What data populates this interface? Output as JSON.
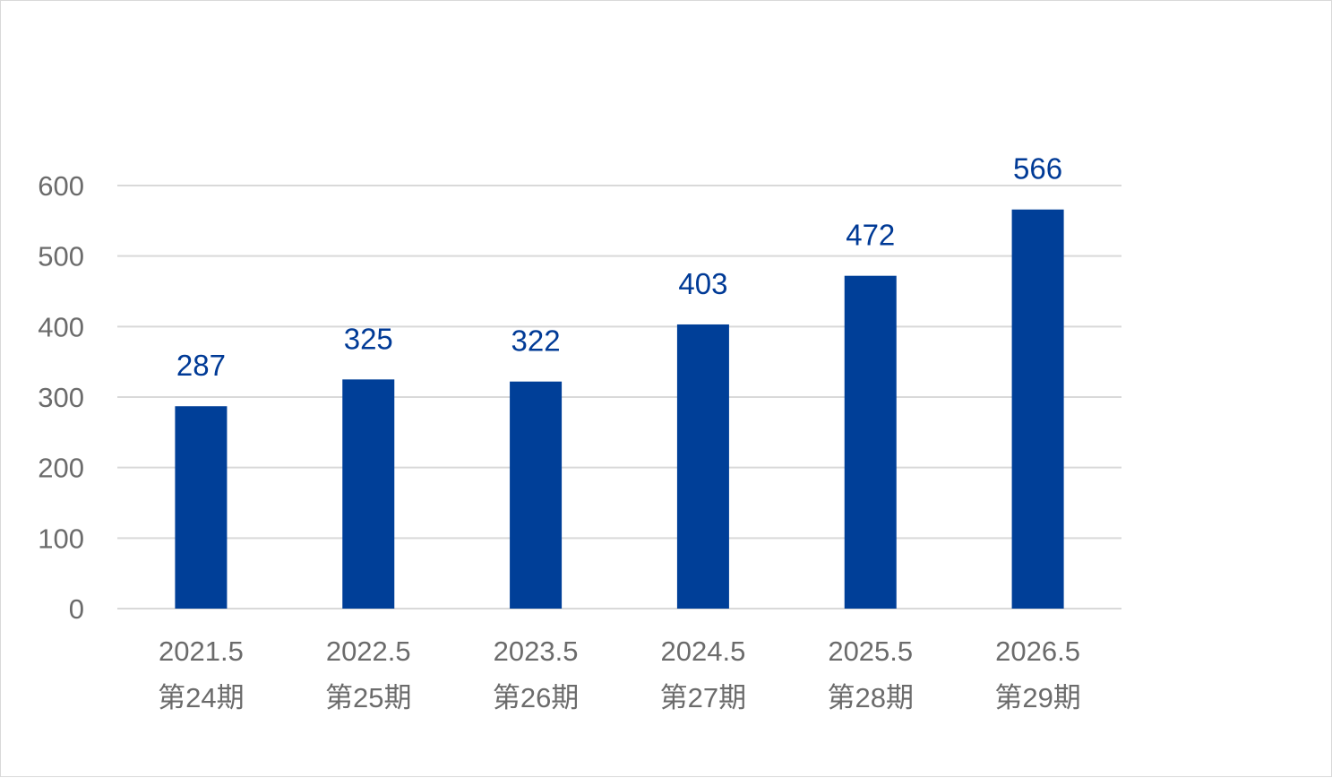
{
  "chart_data": {
    "type": "bar",
    "categories": [
      [
        "2021.5",
        "第24期"
      ],
      [
        "2022.5",
        "第25期"
      ],
      [
        "2023.5",
        "第26期"
      ],
      [
        "2024.5",
        "第27期"
      ],
      [
        "2025.5",
        "第28期"
      ],
      [
        "2026.5",
        "第29期"
      ]
    ],
    "values": [
      287,
      325,
      322,
      403,
      472,
      566
    ],
    "ylim": [
      0,
      600
    ],
    "yticks": [
      0,
      100,
      200,
      300,
      400,
      500,
      600
    ],
    "grid": true,
    "legend": "none",
    "bar_color": "#003f98",
    "label_color": "#003a96"
  }
}
